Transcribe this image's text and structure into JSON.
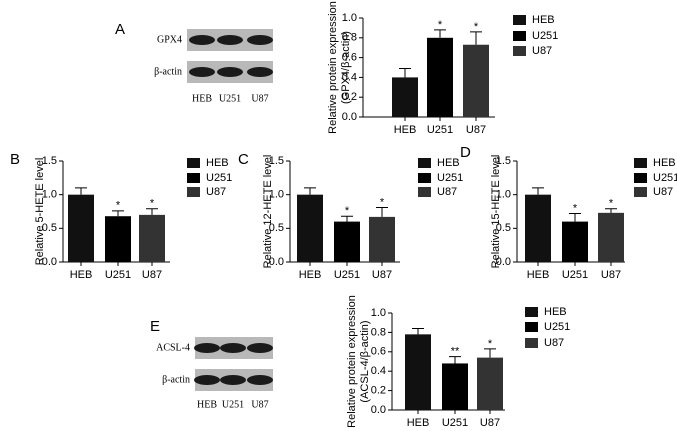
{
  "chart_data": [
    {
      "type": "bar",
      "panel": "A",
      "ylabel": [
        "Relative protein expression",
        "(GPX4/β-actin)"
      ],
      "categories": [
        "HEB",
        "U251",
        "U87"
      ],
      "values": [
        0.4,
        0.8,
        0.73
      ],
      "errors": [
        0.09,
        0.08,
        0.13
      ],
      "significance": [
        null,
        "*",
        "*"
      ],
      "colors": [
        "#111111",
        "#000000",
        "#333333"
      ],
      "legend": true,
      "ylim": [
        0,
        1
      ],
      "yticks": [
        {
          "value": 0,
          "label": "0.0"
        },
        0.2,
        0.4,
        0.6,
        0.8,
        {
          "value": 1,
          "label": "1.0"
        }
      ]
    },
    {
      "type": "bar",
      "panel": "B",
      "ylabel": [
        "Relative 5-HETE level"
      ],
      "categories": [
        "HEB",
        "U251",
        "U87"
      ],
      "values": [
        1.0,
        0.68,
        0.7
      ],
      "errors": [
        0.1,
        0.08,
        0.09
      ],
      "significance": [
        null,
        "*",
        "*"
      ],
      "colors": [
        "#111111",
        "#000000",
        "#333333"
      ],
      "legend": true,
      "ylim": [
        0,
        1.5
      ],
      "yticks": [
        {
          "value": 0,
          "label": "0.0"
        },
        0.5,
        {
          "value": 1,
          "label": "1.0"
        },
        1.5
      ]
    },
    {
      "type": "bar",
      "panel": "C",
      "ylabel": [
        "Relative 12-HETE level"
      ],
      "categories": [
        "HEB",
        "U251",
        "U87"
      ],
      "values": [
        1.0,
        0.6,
        0.67
      ],
      "errors": [
        0.1,
        0.08,
        0.14
      ],
      "significance": [
        null,
        "*",
        "*"
      ],
      "colors": [
        "#111111",
        "#000000",
        "#333333"
      ],
      "legend": true,
      "ylim": [
        0,
        1.5
      ],
      "yticks": [
        {
          "value": 0,
          "label": "0.0"
        },
        0.5,
        {
          "value": 1,
          "label": "1.0"
        },
        1.5
      ]
    },
    {
      "type": "bar",
      "panel": "D",
      "ylabel": [
        "Relative 15-HETE level"
      ],
      "categories": [
        "HEB",
        "U251",
        "U87"
      ],
      "values": [
        1.0,
        0.6,
        0.73
      ],
      "errors": [
        0.1,
        0.12,
        0.06
      ],
      "significance": [
        null,
        "*",
        "*"
      ],
      "colors": [
        "#111111",
        "#000000",
        "#333333"
      ],
      "legend": true,
      "ylim": [
        0,
        1.5
      ],
      "yticks": [
        {
          "value": 0,
          "label": "0.0"
        },
        0.5,
        {
          "value": 1,
          "label": "1.0"
        },
        1.5
      ]
    },
    {
      "type": "bar",
      "panel": "E",
      "ylabel": [
        "Relative protein expression",
        "(ACSL-4/β-actin)"
      ],
      "categories": [
        "HEB",
        "U251",
        "U87"
      ],
      "values": [
        0.78,
        0.48,
        0.54
      ],
      "errors": [
        0.06,
        0.07,
        0.09
      ],
      "significance": [
        null,
        "**",
        "*"
      ],
      "colors": [
        "#111111",
        "#000000",
        "#333333"
      ],
      "legend": true,
      "ylim": [
        0,
        1
      ],
      "yticks": [
        {
          "value": 0,
          "label": "0.0"
        },
        0.2,
        0.4,
        0.6,
        0.8,
        {
          "value": 1,
          "label": "1.0"
        }
      ]
    }
  ],
  "blots": [
    {
      "rows": [
        "GPX4",
        "β-actin"
      ],
      "lanes": [
        "HEB",
        "U251",
        "U87"
      ]
    },
    {
      "rows": [
        "ACSL-4",
        "β-actin"
      ],
      "lanes": [
        "HEB",
        "U251",
        "U87"
      ]
    }
  ]
}
